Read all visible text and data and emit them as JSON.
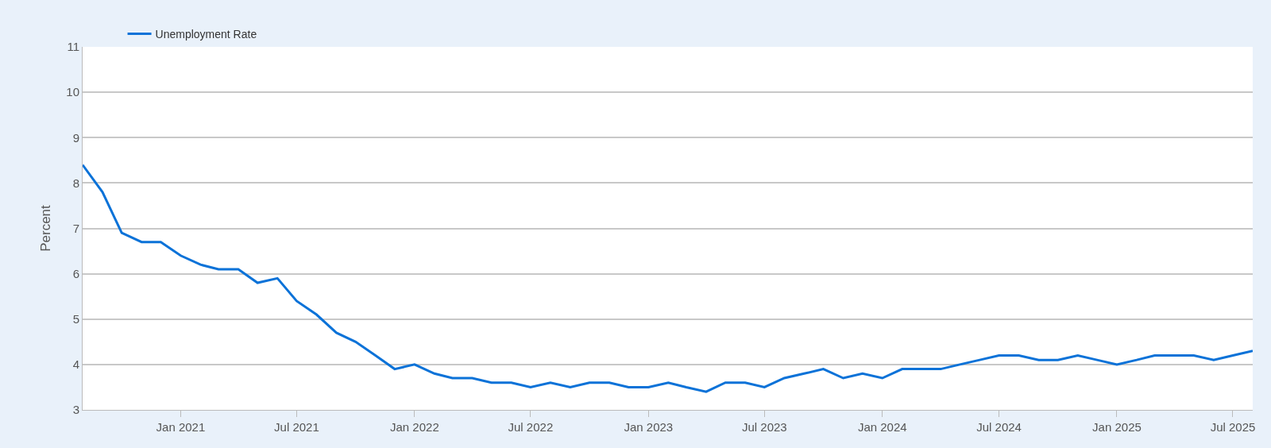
{
  "chart_data": {
    "type": "line",
    "ylabel": "Percent",
    "legend": "top left",
    "grid": "y",
    "marker": "none",
    "line_style": "solid",
    "x": [
      "2020-08",
      "2020-09",
      "2020-10",
      "2020-11",
      "2020-12",
      "2021-01",
      "2021-02",
      "2021-03",
      "2021-04",
      "2021-05",
      "2021-06",
      "2021-07",
      "2021-08",
      "2021-09",
      "2021-10",
      "2021-11",
      "2021-12",
      "2022-01",
      "2022-02",
      "2022-03",
      "2022-04",
      "2022-05",
      "2022-06",
      "2022-07",
      "2022-08",
      "2022-09",
      "2022-10",
      "2022-11",
      "2022-12",
      "2023-01",
      "2023-02",
      "2023-03",
      "2023-04",
      "2023-05",
      "2023-06",
      "2023-07",
      "2023-08",
      "2023-09",
      "2023-10",
      "2023-11",
      "2023-12",
      "2024-01",
      "2024-02",
      "2024-03",
      "2024-04",
      "2024-05",
      "2024-06",
      "2024-07",
      "2024-08",
      "2024-09",
      "2024-10",
      "2024-11",
      "2024-12",
      "2025-01",
      "2025-02",
      "2025-03",
      "2025-04",
      "2025-05",
      "2025-06",
      "2025-07",
      "2025-08"
    ],
    "series": [
      {
        "name": "Unemployment Rate",
        "color": "#0b72d8",
        "values": [
          8.4,
          7.8,
          6.9,
          6.7,
          6.7,
          6.4,
          6.2,
          6.1,
          6.1,
          5.8,
          5.9,
          5.4,
          5.1,
          4.7,
          4.5,
          4.2,
          3.9,
          4.0,
          3.8,
          3.7,
          3.7,
          3.6,
          3.6,
          3.5,
          3.6,
          3.5,
          3.6,
          3.6,
          3.5,
          3.5,
          3.6,
          3.5,
          3.4,
          3.6,
          3.6,
          3.5,
          3.7,
          3.8,
          3.9,
          3.7,
          3.8,
          3.7,
          3.9,
          3.9,
          3.9,
          4.0,
          4.1,
          4.2,
          4.2,
          4.1,
          4.1,
          4.2,
          4.1,
          4.0,
          4.1,
          4.2,
          4.2,
          4.2,
          4.1,
          4.2,
          4.3
        ]
      }
    ],
    "xlim": [
      "2020-08",
      "2025-08"
    ],
    "xticks": [
      {
        "value": "2021-01",
        "label": "Jan 2021"
      },
      {
        "value": "2021-07",
        "label": "Jul 2021"
      },
      {
        "value": "2022-01",
        "label": "Jan 2022"
      },
      {
        "value": "2022-07",
        "label": "Jul 2022"
      },
      {
        "value": "2023-01",
        "label": "Jan 2023"
      },
      {
        "value": "2023-07",
        "label": "Jul 2023"
      },
      {
        "value": "2024-01",
        "label": "Jan 2024"
      },
      {
        "value": "2024-07",
        "label": "Jul 2024"
      },
      {
        "value": "2025-01",
        "label": "Jan 2025"
      },
      {
        "value": "2025-07",
        "label": "Jul 2025"
      }
    ],
    "ylim": [
      3,
      11
    ],
    "yticks": [
      3,
      4,
      5,
      6,
      7,
      8,
      9,
      10,
      11
    ]
  }
}
